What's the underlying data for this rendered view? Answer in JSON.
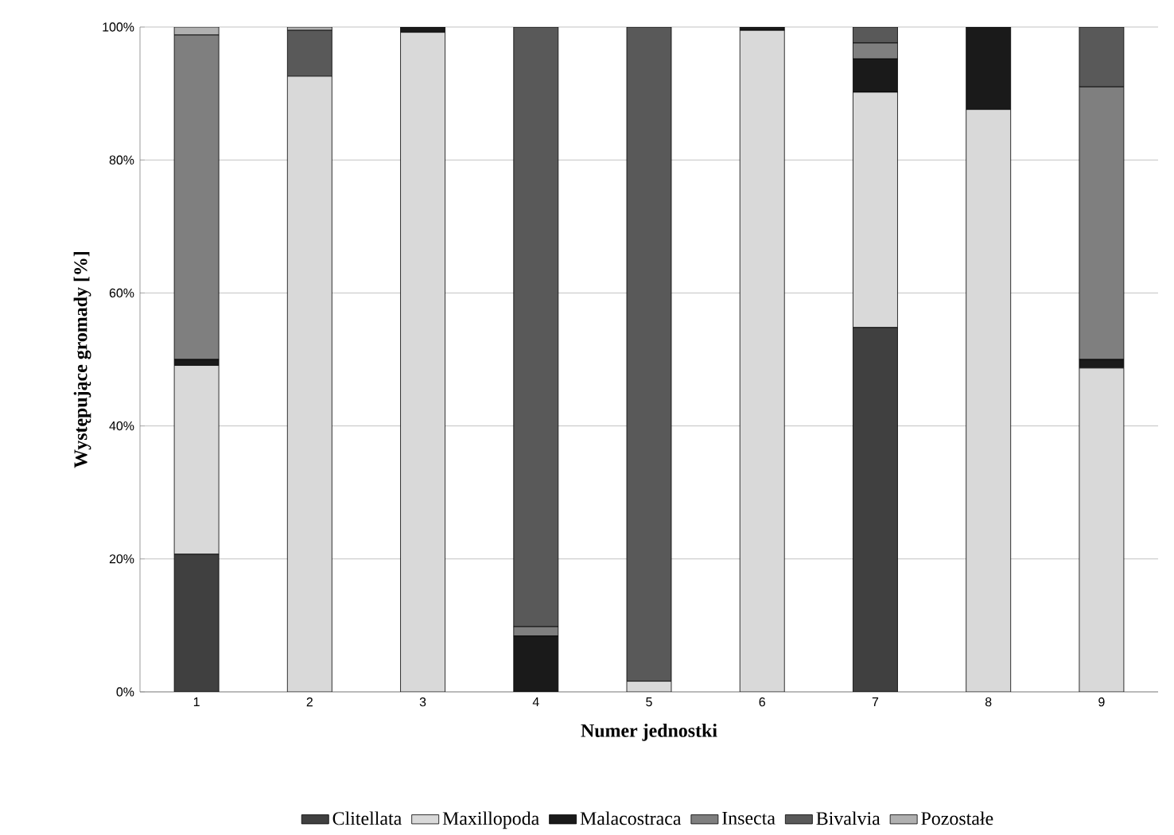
{
  "chart_data": {
    "type": "bar",
    "stacked": true,
    "xlabel": "Numer jednostki",
    "ylabel": "Występujące gromady [%]",
    "categories": [
      "1",
      "2",
      "3",
      "4",
      "5",
      "6",
      "7",
      "8",
      "9"
    ],
    "series": [
      {
        "name": "Clitellata",
        "color": "#404040",
        "values": [
          20.7,
          null,
          null,
          null,
          null,
          null,
          54.8,
          null,
          null
        ]
      },
      {
        "name": "Maxillopoda",
        "color": "#d9d9d9",
        "values": [
          28.4,
          92.6,
          99.2,
          null,
          1.6,
          99.5,
          35.4,
          87.6,
          48.7
        ]
      },
      {
        "name": "Malacostraca",
        "color": "#1a1a1a",
        "values": [
          0.9,
          null,
          0.8,
          8.4,
          null,
          0.5,
          5.0,
          12.4,
          1.3
        ]
      },
      {
        "name": "Insecta",
        "color": "#7f7f7f",
        "values": [
          48.8,
          null,
          null,
          1.4,
          null,
          null,
          2.4,
          null,
          41.0
        ]
      },
      {
        "name": "Bivalvia",
        "color": "#595959",
        "values": [
          null,
          6.9,
          null,
          90.2,
          98.4,
          null,
          2.4,
          null,
          9.0
        ]
      },
      {
        "name": "Pozostałe",
        "color": "#b0b0b0",
        "values": [
          1.2,
          0.5,
          null,
          null,
          null,
          null,
          null,
          null,
          null
        ]
      }
    ],
    "ylim": [
      0,
      100
    ],
    "yticks": [
      {
        "value": 0,
        "label": "0%"
      },
      {
        "value": 20,
        "label": "20%"
      },
      {
        "value": 40,
        "label": "40%"
      },
      {
        "value": 60,
        "label": "60%"
      },
      {
        "value": 80,
        "label": "80%"
      },
      {
        "value": 100,
        "label": "100%"
      }
    ],
    "grid": "y",
    "legend": "bottom"
  }
}
